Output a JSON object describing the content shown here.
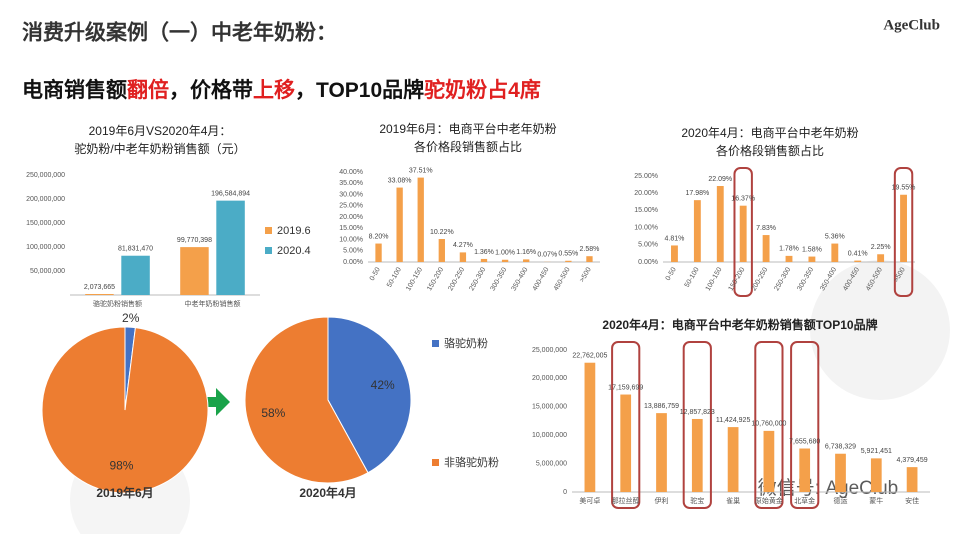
{
  "header": {
    "title": "消费升级案例（一）中老年奶粉：",
    "logo": "AgeClub",
    "subtitle": [
      {
        "text": "电商销售额",
        "color": "#111111"
      },
      {
        "text": "翻倍",
        "color": "#e02020"
      },
      {
        "text": "，价格带",
        "color": "#111111"
      },
      {
        "text": "上移",
        "color": "#e02020"
      },
      {
        "text": "，TOP10品牌",
        "color": "#111111"
      },
      {
        "text": "驼奶粉占4席",
        "color": "#e02020"
      }
    ]
  },
  "watermark": "微信号: AgeClub",
  "chart_data": [
    {
      "type": "bar",
      "title": [
        "2019年6月VS2020年4月：",
        "驼奶粉/中老年奶粉销售额（元）"
      ],
      "categories": [
        "骆驼奶粉销售额",
        "中老年奶粉销售额"
      ],
      "series": [
        {
          "name": "2019.6",
          "color": "#f4a04a",
          "values": [
            2073665,
            99770398
          ],
          "value_labels": [
            "2,073,665",
            "99,770,398"
          ]
        },
        {
          "name": "2020.4",
          "color": "#4bacc6",
          "values": [
            81831470,
            196584894
          ],
          "value_labels": [
            "81,831,470",
            "196,584,894"
          ]
        }
      ],
      "ylim": [
        0,
        250000000
      ],
      "yticks": [
        {
          "value": 50000000,
          "label": "50,000,000"
        },
        {
          "value": 100000000,
          "label": "100,000,000"
        },
        {
          "value": 150000000,
          "label": "150,000,000"
        },
        {
          "value": 200000000,
          "label": "200,000,000"
        },
        {
          "value": 250000000,
          "label": "250,000,000"
        }
      ],
      "grid": false
    },
    {
      "type": "bar",
      "title": [
        "2019年6月：电商平台中老年奶粉",
        "各价格段销售额占比"
      ],
      "categories": [
        "0-50",
        "50-100",
        "100-150",
        "150-200",
        "200-250",
        "250-300",
        "300-350",
        "350-400",
        "400-450",
        "450-500",
        ">500"
      ],
      "values": [
        8.2,
        33.08,
        37.51,
        10.22,
        4.27,
        1.36,
        1.0,
        1.16,
        0.07,
        0.55,
        2.58
      ],
      "value_labels": [
        "8.20%",
        "33.08%",
        "37.51%",
        "10.22%",
        "4.27%",
        "1.36%",
        "1.00%",
        "1.16%",
        "0.07%",
        "0.55%",
        "2.58%"
      ],
      "color": "#f4a04a",
      "ylim": [
        0,
        40
      ],
      "yticks": [
        {
          "value": 0,
          "label": "0.00%"
        },
        {
          "value": 5,
          "label": "5.00%"
        },
        {
          "value": 10,
          "label": "10.00%"
        },
        {
          "value": 15,
          "label": "15.00%"
        },
        {
          "value": 20,
          "label": "20.00%"
        },
        {
          "value": 25,
          "label": "25.00%"
        },
        {
          "value": 30,
          "label": "30.00%"
        },
        {
          "value": 35,
          "label": "35.00%"
        },
        {
          "value": 40,
          "label": "40.00%"
        }
      ],
      "grid": false
    },
    {
      "type": "bar",
      "title": [
        "2020年4月：电商平台中老年奶粉",
        "各价格段销售额占比"
      ],
      "categories": [
        "0-50",
        "50-100",
        "100-150",
        "150-200",
        "200-250",
        "250-300",
        "300-350",
        "350-400",
        "400-450",
        "450-500",
        ">500"
      ],
      "values": [
        4.81,
        17.98,
        22.09,
        16.37,
        7.83,
        1.78,
        1.58,
        5.36,
        0.41,
        2.25,
        19.55
      ],
      "value_labels": [
        "4.81%",
        "17.98%",
        "22.09%",
        "16.37%",
        "7.83%",
        "1.78%",
        "1.58%",
        "5.36%",
        "0.41%",
        "2.25%",
        "19.55%"
      ],
      "color": "#f4a04a",
      "ylim": [
        0,
        25
      ],
      "yticks": [
        {
          "value": 0,
          "label": "0.00%"
        },
        {
          "value": 5,
          "label": "5.00%"
        },
        {
          "value": 10,
          "label": "10.00%"
        },
        {
          "value": 15,
          "label": "15.00%"
        },
        {
          "value": 20,
          "label": "20.00%"
        },
        {
          "value": 25,
          "label": "25.00%"
        }
      ],
      "grid": false
    },
    {
      "type": "pie",
      "caption": "2019年6月",
      "values": [
        2,
        98
      ],
      "value_labels": [
        "2%",
        "98%"
      ],
      "colors": [
        "#4472c4",
        "#ed7d31"
      ]
    },
    {
      "type": "pie",
      "caption": "2020年4月",
      "categories": [
        "骆驼奶粉",
        "非骆驼奶粉"
      ],
      "values": [
        42,
        58
      ],
      "value_labels": [
        "42%",
        "58%"
      ],
      "colors": [
        "#4472c4",
        "#ed7d31"
      ]
    },
    {
      "type": "bar",
      "title": [
        "2020年4月：电商平台中老年奶粉销售额TOP10品牌"
      ],
      "categories": [
        "美可卓",
        "那拉丝醇",
        "伊利",
        "驼宝",
        "雀巢",
        "原始黄金",
        "北草金",
        "德运",
        "蒙牛",
        "安佳"
      ],
      "values": [
        22762005,
        17159699,
        13886759,
        12857823,
        11424925,
        10760000,
        7655680,
        6738329,
        5921451,
        4379459
      ],
      "value_labels": [
        "22,762,005",
        "17,159,699",
        "13,886,759",
        "12,857,823",
        "11,424,925",
        "10,760,000",
        "7,655,680",
        "6,738,329",
        "5,921,451",
        "4,379,459"
      ],
      "color": "#f4a04a",
      "ylim": [
        0,
        25000000
      ],
      "yticks": [
        0,
        {
          "value": 5000000,
          "label": "5,000,000"
        },
        {
          "value": 10000000,
          "label": "10,000,000"
        },
        {
          "value": 15000000,
          "label": "15,000,000"
        },
        {
          "value": 20000000,
          "label": "20,000,000"
        },
        {
          "value": 25000000,
          "label": "25,000,000"
        }
      ],
      "grid": false
    }
  ]
}
